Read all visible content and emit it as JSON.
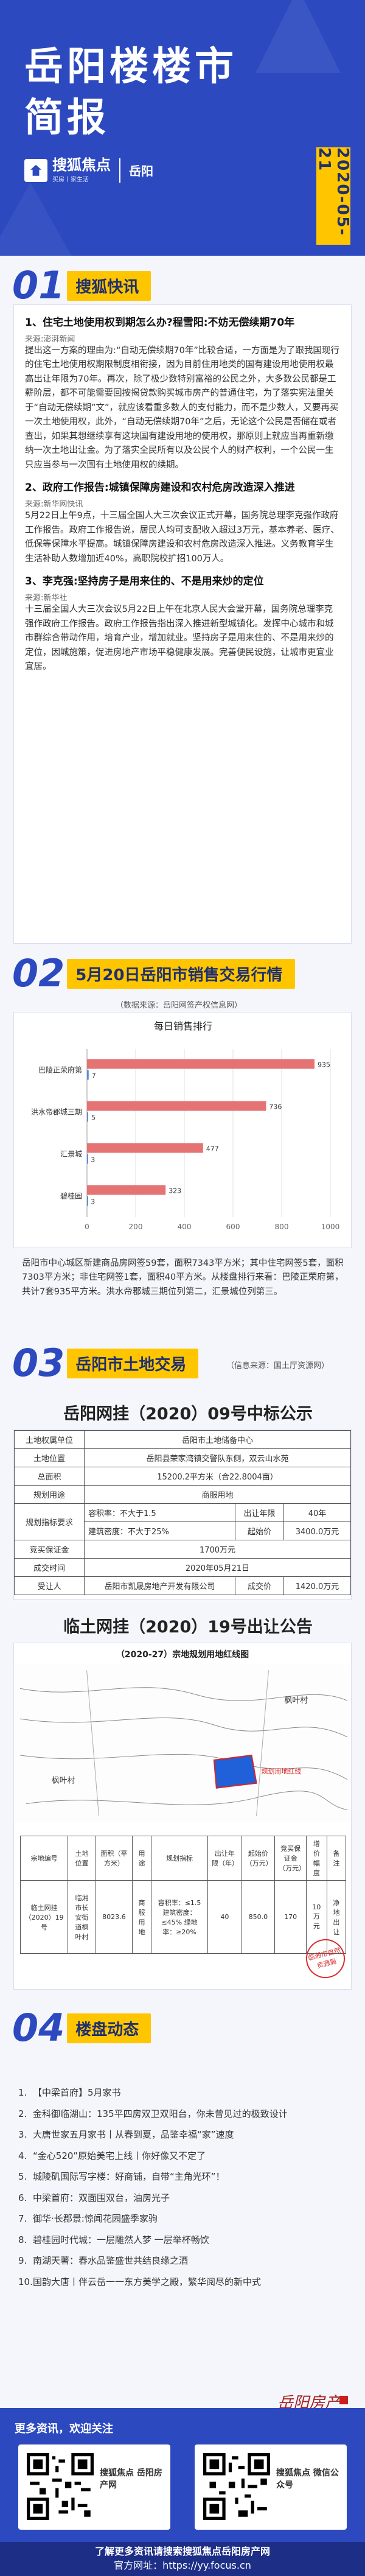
{
  "header": {
    "title_line1": "岳阳楼楼市",
    "title_line2": "简报",
    "brand": "搜狐焦点",
    "brand_slogan": "买房丨家生活",
    "city": "岳阳",
    "date": "2020-05-21"
  },
  "section1": {
    "num": "01",
    "title": "搜狐快讯",
    "items": [
      {
        "heading": "1、住宅土地使用权到期怎么办?程雪阳:不妨无偿续期70年",
        "source": "来源:澎湃新闻",
        "body": "提出这一方案的理由为:“自动无偿续期70年”比较合适，一方面是为了跟我国现行的住宅土地使用权期限制度相衔接，因为目前住用地类的国有建设用地使用权最高出让年限为70年。再次，除了极少数特别富裕的公民之外，大多数公民都是工薪阶层，都不可能需要回按揭贷款购买城市房产的普通住宅，为了落实宪法里关于“自动无偿续期”文”，就应该看重多数人的支付能力，而不是少数人，又要再买一次土地使用权，此外，“自动无偿续期70年”之后，无论这个公民是否储在或者查出，如果其想继续享有这块国有建设用地的使用权，那原则上就应当再重新缴纳一次土地出让金。为了落实全民所有以及公民个人的财产权利，一个公民一生只应当参与一次国有土地使用权的续期。"
      },
      {
        "heading": "2、政府工作报告:城镇保障房建设和农村危房改造深入推进",
        "source": "来源:新华网快讯",
        "body": "5月22日上午9点，十三届全国人大三次会议正式开幕，国务院总理李克强作政府工作报告。政府工作报告说，居民人均可支配收入超过3万元，基本养老、医疗、低保等保障水平提高。城镇保障房建设和农村危房改造深入推进。义务教育学生生活补助人数增加近40%，高职院校扩招100万人。"
      },
      {
        "heading": "3、李克强:坚持房子是用来住的、不是用来炒的定位",
        "source": "来源:新华社",
        "body": "十三届全国人大三次会议5月22日上午在北京人民大会堂开幕，国务院总理李克强作政府工作报告。政府工作报告指出深入推进新型城镇化。发挥中心城市和城市群综合带动作用，培育产业，增加就业。坚持房子是用来住的、不是用来炒的定位，因城施策，促进房地产市场平稳健康发展。完善便民设施，让城市更宜业宜居。"
      }
    ]
  },
  "section2": {
    "num": "02",
    "title": "5月20日岳阳市销售交易行情",
    "chart_caption": "（数据来源：岳阳网签产权信息网）",
    "summary": "岳阳市中心城区新建商品房网签59套，面积7343平方米；其中住宅网签5套，面积7303平方米；非住宅网签1套，面积40平方米。从楼盘排行来看：巴陵正荣府第，共计7套935平方米。洪水帝郡城三期位列第二，汇景城位列第三。"
  },
  "chart_data": {
    "type": "bar",
    "orientation": "horizontal",
    "title": "每日销售排行",
    "categories": [
      "巴陵正荣府第",
      "洪水帝郡城三期",
      "汇景城",
      "碧桂园"
    ],
    "series": [
      {
        "name": "",
        "values": [
          935,
          736,
          477,
          323
        ],
        "color": "#e57373"
      },
      {
        "name": "",
        "values": [
          7,
          5,
          3,
          3
        ],
        "color": "#5e8ed6"
      }
    ],
    "xlim": [
      0,
      1000
    ],
    "x_ticks": [
      0,
      200,
      400,
      600,
      800,
      1000
    ],
    "grid": true
  },
  "section3": {
    "num": "03",
    "title": "岳阳市土地交易",
    "source_note": "（信息来源：国土厅资源网）",
    "notice1_title": "岳阳网挂（2020）09号中标公示",
    "table1": [
      [
        "土地权属单位",
        "岳阳市土地储备中心"
      ],
      [
        "土地位置",
        "岳阳县荣家湾镇交警队东侧，双云山水苑"
      ],
      [
        "总面积",
        "15200.2平方米（合22.8004亩）"
      ],
      [
        "规划用途",
        "商服用地"
      ],
      [
        "规划指标要求",
        "容积率：不大于1.5",
        "出让年限",
        "40年"
      ],
      [
        "",
        "建筑密度：不大于25%",
        "起始价",
        "3400.0万元"
      ],
      [
        "竞买保证金",
        "1700万元"
      ],
      [
        "成交时间",
        "2020年05月21日"
      ],
      [
        "受让人",
        "岳阳市凯晟房地产开发有限公司",
        "成交价",
        "1420.0万元"
      ]
    ],
    "notice2_title": "临土网挂（2020）19号出让公告",
    "map_caption": "（2020-27）宗地规划用地红线图",
    "map_labels": [
      "枫叶村",
      "枫叶村",
      "规划用地红线"
    ],
    "table2_headers": [
      "宗地编号",
      "土地位置",
      "面积（平方米）",
      "用途",
      "规划指标",
      "出让年限（年）",
      "起始价（万元）",
      "竞买保证金（万元）",
      "增价幅度",
      "备注"
    ],
    "table2_row": [
      "临土网挂（2020）19号",
      "临湘市长安街道枫叶村",
      "8023.6",
      "商服用地",
      "容积率：≤1.5 建筑密度：≤45% 绿地率：≥20%",
      "40",
      "850.0",
      "170",
      "10万元",
      "净地出让"
    ],
    "seal_text": "临湘市自然资源局"
  },
  "section4": {
    "num": "04",
    "title": "楼盘动态",
    "items": [
      "【中梁首府】5月家书",
      "金科御临湖山：135平四房双卫双阳台，你未曾见过的极致设计",
      "大唐世家五月家书丨从春到夏，品鉴幸福“家”速度",
      "“金心520”原始美宅上线丨你好像又不定了",
      "城陵矶国际写字楼：好商铺，自带“主角光环”！",
      "中梁首府：双面围双台，油房光子",
      "御华·长郡景:惊闻花园盛季家驹",
      "碧桂园时代城：一层雕然人梦 一层举杯畅饮",
      "南湖天著：春水品鉴盛世共结良缘之酒",
      "国韵大唐丨伴云岳一一东方美学之殿，繁华阅尽的新中式"
    ],
    "calligraphy": "岳阳房产"
  },
  "footer": {
    "heading": "更多资讯，欢迎关注",
    "card1": "搜狐焦点 岳阳房产网",
    "card2": "搜狐焦点 微信公众号",
    "line1": "了解更多资讯请搜索搜狐焦点岳阳房产网",
    "line2": "官方网址：https://yy.focus.cn"
  }
}
